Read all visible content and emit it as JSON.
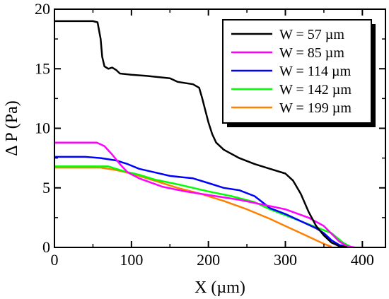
{
  "chart_data": {
    "type": "line",
    "xlabel": "X (µm)",
    "ylabel": "Δ P (Pa)",
    "xlim": [
      0,
      430
    ],
    "ylim": [
      0,
      20
    ],
    "xticks": [
      0,
      100,
      200,
      300,
      400
    ],
    "yticks": [
      0,
      5,
      10,
      15,
      20
    ],
    "grid": false,
    "legend_position": "top-right",
    "series": [
      {
        "name": "W = 57 µm",
        "color": "#000000",
        "points": [
          [
            0,
            19
          ],
          [
            50,
            19
          ],
          [
            56,
            18.9
          ],
          [
            60,
            17.5
          ],
          [
            62,
            16
          ],
          [
            65,
            15.2
          ],
          [
            70,
            15
          ],
          [
            75,
            15.1
          ],
          [
            80,
            14.9
          ],
          [
            85,
            14.6
          ],
          [
            100,
            14.5
          ],
          [
            120,
            14.4
          ],
          [
            150,
            14.2
          ],
          [
            160,
            13.9
          ],
          [
            180,
            13.7
          ],
          [
            188,
            13.4
          ],
          [
            192,
            12.5
          ],
          [
            196,
            11.5
          ],
          [
            200,
            10.5
          ],
          [
            205,
            9.5
          ],
          [
            210,
            8.8
          ],
          [
            220,
            8.2
          ],
          [
            240,
            7.5
          ],
          [
            260,
            7
          ],
          [
            280,
            6.6
          ],
          [
            300,
            6.2
          ],
          [
            310,
            5.6
          ],
          [
            320,
            4.5
          ],
          [
            330,
            3
          ],
          [
            340,
            1.8
          ],
          [
            350,
            1
          ],
          [
            360,
            0.4
          ],
          [
            370,
            0.1
          ],
          [
            380,
            0.02
          ]
        ]
      },
      {
        "name": "W = 85 µm",
        "color": "#ff00ff",
        "points": [
          [
            0,
            8.8
          ],
          [
            55,
            8.8
          ],
          [
            65,
            8.5
          ],
          [
            75,
            7.8
          ],
          [
            85,
            7
          ],
          [
            95,
            6.3
          ],
          [
            110,
            5.8
          ],
          [
            140,
            5.1
          ],
          [
            170,
            4.7
          ],
          [
            200,
            4.4
          ],
          [
            240,
            4
          ],
          [
            270,
            3.6
          ],
          [
            300,
            3.2
          ],
          [
            330,
            2.5
          ],
          [
            350,
            1.8
          ],
          [
            370,
            0.5
          ],
          [
            380,
            0.1
          ],
          [
            390,
            0
          ]
        ]
      },
      {
        "name": "W = 114 µm",
        "color": "#0000ff",
        "points": [
          [
            0,
            7.6
          ],
          [
            40,
            7.6
          ],
          [
            60,
            7.5
          ],
          [
            80,
            7.3
          ],
          [
            95,
            7
          ],
          [
            110,
            6.6
          ],
          [
            130,
            6.3
          ],
          [
            150,
            6
          ],
          [
            180,
            5.8
          ],
          [
            200,
            5.4
          ],
          [
            220,
            5
          ],
          [
            240,
            4.8
          ],
          [
            260,
            4.3
          ],
          [
            280,
            3.3
          ],
          [
            300,
            2.8
          ],
          [
            320,
            2.2
          ],
          [
            340,
            1.6
          ],
          [
            350,
            1.2
          ],
          [
            360,
            0.6
          ],
          [
            370,
            0.2
          ],
          [
            380,
            0.05
          ]
        ]
      },
      {
        "name": "W = 142 µm",
        "color": "#00ff00",
        "points": [
          [
            0,
            6.8
          ],
          [
            70,
            6.8
          ],
          [
            90,
            6.4
          ],
          [
            110,
            6.1
          ],
          [
            130,
            5.7
          ],
          [
            160,
            5.3
          ],
          [
            200,
            4.7
          ],
          [
            230,
            4.3
          ],
          [
            260,
            3.8
          ],
          [
            280,
            3.2
          ],
          [
            300,
            2.7
          ],
          [
            320,
            2.2
          ],
          [
            340,
            1.7
          ],
          [
            360,
            1.2
          ],
          [
            375,
            0.4
          ],
          [
            385,
            0.05
          ]
        ]
      },
      {
        "name": "W = 199 µm",
        "color": "#ff8000",
        "points": [
          [
            0,
            6.7
          ],
          [
            60,
            6.7
          ],
          [
            80,
            6.5
          ],
          [
            100,
            6.2
          ],
          [
            130,
            5.6
          ],
          [
            160,
            5
          ],
          [
            190,
            4.5
          ],
          [
            220,
            3.9
          ],
          [
            250,
            3.2
          ],
          [
            280,
            2.4
          ],
          [
            300,
            1.8
          ],
          [
            320,
            1.2
          ],
          [
            340,
            0.6
          ],
          [
            350,
            0.3
          ],
          [
            360,
            0.05
          ]
        ]
      }
    ]
  }
}
